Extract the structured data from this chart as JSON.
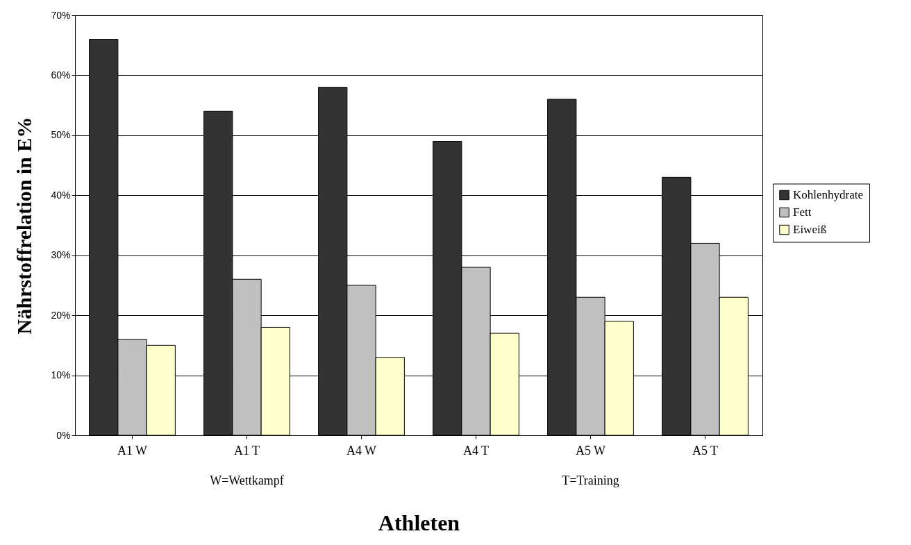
{
  "chart_data": {
    "type": "bar",
    "categories": [
      "A1 W",
      "A1 T",
      "A4 W",
      "A4 T",
      "A5 W",
      "A5 T"
    ],
    "series": [
      {
        "name": "Kohlenhydrate",
        "color": "#333333",
        "values": [
          66,
          54,
          58,
          49,
          56,
          43
        ]
      },
      {
        "name": "Fett",
        "color": "#c0c0c0",
        "values": [
          16,
          26,
          25,
          28,
          23,
          32
        ]
      },
      {
        "name": "Eiweiß",
        "color": "#ffffcc",
        "values": [
          15,
          18,
          13,
          17,
          19,
          23
        ]
      }
    ],
    "xlabel": "Athleten",
    "ylabel": "Nährstoffrelation in E%",
    "annotations": [
      "W=Wettkampf",
      "T=Training"
    ],
    "ylim": [
      0,
      70
    ],
    "yticks": [
      {
        "value": 0,
        "label": "0%"
      },
      {
        "value": 10,
        "label": "10%"
      },
      {
        "value": 20,
        "label": "20%"
      },
      {
        "value": 30,
        "label": "30%"
      },
      {
        "value": 40,
        "label": "40%"
      },
      {
        "value": 50,
        "label": "50%"
      },
      {
        "value": 60,
        "label": "60%"
      },
      {
        "value": 70,
        "label": "70%"
      }
    ],
    "grid": "y",
    "legend": "right"
  }
}
